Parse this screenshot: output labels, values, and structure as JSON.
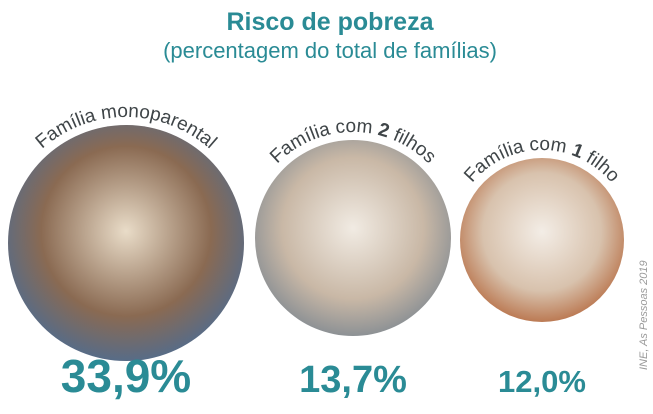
{
  "header": {
    "title": "Risco de pobreza",
    "subtitle": "(percentagem do total de famílias)"
  },
  "items": [
    {
      "label": [
        {
          "text": "Família monoparental",
          "bold": false
        }
      ],
      "value": "33,9%"
    },
    {
      "label": [
        {
          "text": "Família com ",
          "bold": false
        },
        {
          "text": "2",
          "bold": true
        },
        {
          "text": " filhos",
          "bold": false
        }
      ],
      "value": "13,7%"
    },
    {
      "label": [
        {
          "text": "Família com ",
          "bold": false
        },
        {
          "text": "1",
          "bold": true
        },
        {
          "text": " filho",
          "bold": false
        }
      ],
      "value": "12,0%"
    }
  ],
  "source": "INE, As Pessoas 2019"
}
